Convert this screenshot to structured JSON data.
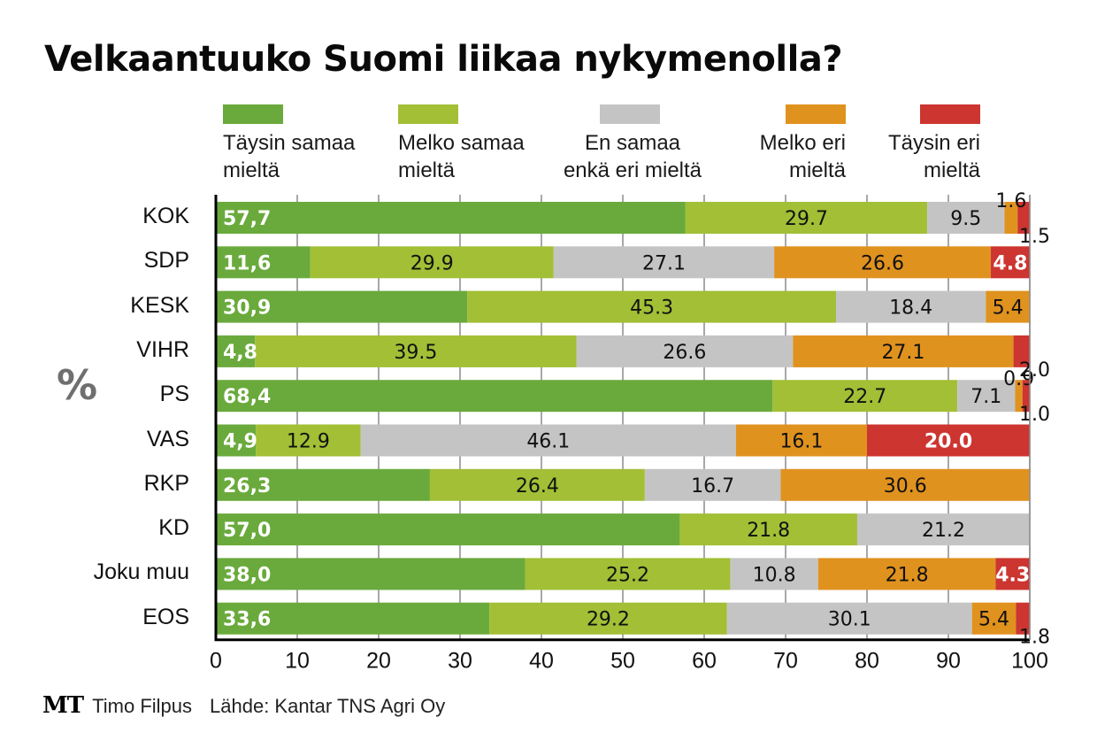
{
  "chart_data": {
    "type": "bar",
    "orientation": "horizontal",
    "stacked": true,
    "title": "Velkaantuuko Suomi liikaa nykymenolla?",
    "ylabel": "%",
    "xlabel": "",
    "xlim": [
      0,
      100
    ],
    "xticks": [
      0,
      10,
      20,
      30,
      40,
      50,
      60,
      70,
      80,
      90,
      100
    ],
    "grid": true,
    "legend_position": "top",
    "categories": [
      "KOK",
      "SDP",
      "KESK",
      "VIHR",
      "PS",
      "VAS",
      "RKP",
      "KD",
      "Joku muu",
      "EOS"
    ],
    "series": [
      {
        "name": "Täysin samaa\nmieltä",
        "color": "#6aaa3c",
        "label_style": "bold-white-comma",
        "values": [
          57.7,
          11.6,
          30.9,
          4.8,
          68.4,
          4.9,
          26.3,
          57.0,
          38.0,
          33.6
        ],
        "labels": [
          "57,7",
          "11,6",
          "30,9",
          "4,8",
          "68,4",
          "4,9",
          "26,3",
          "57,0",
          "38,0",
          "33,6"
        ]
      },
      {
        "name": "Melko samaa\nmieltä",
        "color": "#a2bf36",
        "label_style": "dark",
        "values": [
          29.7,
          29.9,
          45.3,
          39.5,
          22.7,
          12.9,
          26.4,
          21.8,
          25.2,
          29.2
        ],
        "labels": [
          "29.7",
          "29.9",
          "45.3",
          "39.5",
          "22.7",
          "12.9",
          "26.4",
          "21.8",
          "25.2",
          "29.2"
        ]
      },
      {
        "name": "En samaa\nenkä eri mieltä",
        "color": "#c4c4c4",
        "label_style": "dark",
        "values": [
          9.5,
          27.1,
          18.4,
          26.6,
          7.1,
          46.1,
          16.7,
          21.2,
          10.8,
          30.1
        ],
        "labels": [
          "9.5",
          "27.1",
          "18.4",
          "26.6",
          "7.1",
          "46.1",
          "16.7",
          "21.2",
          "10.8",
          "30.1"
        ]
      },
      {
        "name": "Melko eri\nmieltä",
        "color": "#e0921f",
        "label_style": "dark",
        "values": [
          1.6,
          26.6,
          5.4,
          27.1,
          0.9,
          16.1,
          30.6,
          0,
          21.8,
          5.4
        ],
        "labels": [
          "1.6",
          "26.6",
          "5.4",
          "27.1",
          "0.9",
          "16.1",
          "30.6",
          "",
          "21.8",
          "5.4"
        ]
      },
      {
        "name": "Täysin eri\nmieltä",
        "color": "#cc3530",
        "label_style": "mixed",
        "values": [
          1.5,
          4.8,
          0,
          2.0,
          1.0,
          20.0,
          0,
          0,
          4.3,
          1.8
        ],
        "labels": [
          "1.5",
          "4.8",
          "",
          "2.0",
          "1.0",
          "20.0",
          "",
          "",
          "4.3",
          "1.8"
        ]
      }
    ]
  },
  "footer": {
    "logo": "MT",
    "author": "Timo Filpus",
    "source": "Lähde: Kantar TNS Agri Oy"
  }
}
